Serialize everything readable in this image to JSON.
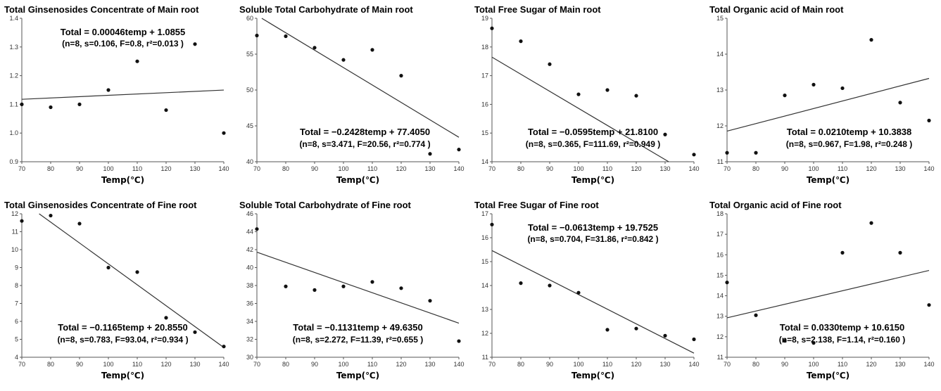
{
  "chart_data": [
    {
      "type": "scatter",
      "title": "Total Ginsenosides Concentrate of Main root",
      "xlabel": "Temp(℃)",
      "x": [
        70,
        80,
        90,
        100,
        110,
        120,
        130,
        140
      ],
      "y": [
        1.1,
        1.09,
        1.1,
        1.15,
        1.25,
        1.08,
        1.31,
        1.0
      ],
      "xlim": [
        70,
        140
      ],
      "ylim": [
        0.9,
        1.4
      ],
      "yticks": [
        "0.9",
        "1.0",
        "1.1",
        "1.2",
        "1.3",
        "1.4"
      ],
      "xticks": [
        "70",
        "80",
        "90",
        "100",
        "110",
        "120",
        "130",
        "140"
      ],
      "fit": {
        "slope": 0.00046,
        "intercept": 1.0855
      },
      "equation": "Total = 0.00046temp + 1.0855",
      "stats": "(n=8, s=0.106, F=0.8, r²=0.013 )",
      "label_pos": "top"
    },
    {
      "type": "scatter",
      "title": "Soluble Total Carbohydrate of Main root",
      "xlabel": "Temp(℃)",
      "x": [
        70,
        80,
        90,
        100,
        110,
        120,
        130,
        140
      ],
      "y": [
        57.6,
        57.5,
        55.9,
        54.2,
        55.6,
        52.0,
        41.1,
        41.7
      ],
      "xlim": [
        70,
        140
      ],
      "ylim": [
        40,
        60
      ],
      "yticks": [
        "40",
        "45",
        "50",
        "55",
        "60"
      ],
      "xticks": [
        "70",
        "80",
        "90",
        "100",
        "110",
        "120",
        "130",
        "140"
      ],
      "fit": {
        "slope": -0.2428,
        "intercept": 77.405
      },
      "equation": "Total = −0.2428temp + 77.4050",
      "stats": "(n=8, s=3.471, F=20.56, r²=0.774 )",
      "label_pos": "bottom"
    },
    {
      "type": "scatter",
      "title": "Total Free Sugar of Main root",
      "xlabel": "Temp(℃)",
      "x": [
        70,
        80,
        90,
        100,
        110,
        120,
        130,
        140
      ],
      "y": [
        18.65,
        18.2,
        17.4,
        16.35,
        16.5,
        16.3,
        14.95,
        14.25
      ],
      "xlim": [
        70,
        140
      ],
      "ylim": [
        14,
        19
      ],
      "yticks": [
        "14",
        "15",
        "16",
        "17",
        "18",
        "19"
      ],
      "xticks": [
        "70",
        "80",
        "90",
        "100",
        "110",
        "120",
        "130",
        "140"
      ],
      "fit": {
        "slope": -0.0595,
        "intercept": 21.81
      },
      "equation": "Total = −0.0595temp + 21.8100",
      "stats": "(n=8, s=0.365, F=111.69, r²=0.949 )",
      "label_pos": "bottom"
    },
    {
      "type": "scatter",
      "title": "Total Organic acid of Main root",
      "xlabel": "Temp(℃)",
      "x": [
        70,
        80,
        90,
        100,
        110,
        120,
        130,
        140
      ],
      "y": [
        11.25,
        11.25,
        12.85,
        13.15,
        13.05,
        14.4,
        12.65,
        12.15
      ],
      "xlim": [
        70,
        140
      ],
      "ylim": [
        11,
        15
      ],
      "yticks": [
        "11",
        "12",
        "13",
        "14",
        "15"
      ],
      "xticks": [
        "70",
        "80",
        "90",
        "100",
        "110",
        "120",
        "130",
        "140"
      ],
      "fit": {
        "slope": 0.021,
        "intercept": 10.3838
      },
      "equation": "Total = 0.0210temp + 10.3838",
      "stats": "(n=8, s=0.967, F=1.98, r²=0.248 )",
      "label_pos": "bottom"
    },
    {
      "type": "scatter",
      "title": "Total Ginsenosides Concentrate of Fine root",
      "xlabel": "Temp(℃)",
      "x": [
        70,
        80,
        90,
        100,
        110,
        120,
        130,
        140
      ],
      "y": [
        11.6,
        11.9,
        11.45,
        9.0,
        8.75,
        6.2,
        5.4,
        4.6
      ],
      "xlim": [
        70,
        140
      ],
      "ylim": [
        4,
        12
      ],
      "yticks": [
        "4",
        "5",
        "6",
        "7",
        "8",
        "9",
        "10",
        "11",
        "12"
      ],
      "xticks": [
        "70",
        "80",
        "90",
        "100",
        "110",
        "120",
        "130",
        "140"
      ],
      "fit": {
        "slope": -0.1165,
        "intercept": 20.855
      },
      "equation": "Total = −0.1165temp + 20.8550",
      "stats": "(n=8, s=0.783, F=93.04, r²=0.934 )",
      "label_pos": "bottom"
    },
    {
      "type": "scatter",
      "title": "Soluble Total Carbohydrate of Fine root",
      "xlabel": "Temp(℃)",
      "x": [
        70,
        80,
        90,
        100,
        110,
        120,
        130,
        140
      ],
      "y": [
        44.3,
        37.9,
        37.5,
        37.9,
        38.4,
        37.7,
        36.3,
        31.8
      ],
      "xlim": [
        70,
        140
      ],
      "ylim": [
        30,
        46
      ],
      "yticks": [
        "30",
        "32",
        "34",
        "36",
        "38",
        "40",
        "42",
        "44",
        "46"
      ],
      "xticks": [
        "70",
        "80",
        "90",
        "100",
        "110",
        "120",
        "130",
        "140"
      ],
      "fit": {
        "slope": -0.1131,
        "intercept": 49.635
      },
      "equation": "Total = −0.1131temp + 49.6350",
      "stats": "(n=8, s=2.272, F=11.39, r²=0.655 )",
      "label_pos": "bottom"
    },
    {
      "type": "scatter",
      "title": "Total Free Sugar of Fine root",
      "xlabel": "Temp(℃)",
      "x": [
        70,
        80,
        90,
        100,
        110,
        120,
        130,
        140
      ],
      "y": [
        16.55,
        14.1,
        14.0,
        13.7,
        12.15,
        12.2,
        11.9,
        11.75
      ],
      "xlim": [
        70,
        140
      ],
      "ylim": [
        11,
        17
      ],
      "yticks": [
        "11",
        "12",
        "13",
        "14",
        "15",
        "16",
        "17"
      ],
      "xticks": [
        "70",
        "80",
        "90",
        "100",
        "110",
        "120",
        "130",
        "140"
      ],
      "fit": {
        "slope": -0.0613,
        "intercept": 19.7525
      },
      "equation": "Total = −0.0613temp + 19.7525",
      "stats": "(n=8, s=0.704, F=31.86, r²=0.842 )",
      "label_pos": "top"
    },
    {
      "type": "scatter",
      "title": "Total Organic acid of Fine root",
      "xlabel": "Temp(℃)",
      "x": [
        70,
        80,
        90,
        100,
        110,
        120,
        130,
        140
      ],
      "y": [
        14.65,
        13.05,
        11.8,
        11.7,
        16.1,
        17.55,
        16.1,
        13.55
      ],
      "xlim": [
        70,
        140
      ],
      "ylim": [
        11,
        18
      ],
      "yticks": [
        "11",
        "12",
        "13",
        "14",
        "15",
        "16",
        "17",
        "18"
      ],
      "xticks": [
        "70",
        "80",
        "90",
        "100",
        "110",
        "120",
        "130",
        "140"
      ],
      "fit": {
        "slope": 0.033,
        "intercept": 10.615
      },
      "equation": "Total = 0.0330temp + 10.6150",
      "stats": "(n=8, s=2.138, F=1.14, r²=0.160 )",
      "label_pos": "bottom"
    }
  ]
}
